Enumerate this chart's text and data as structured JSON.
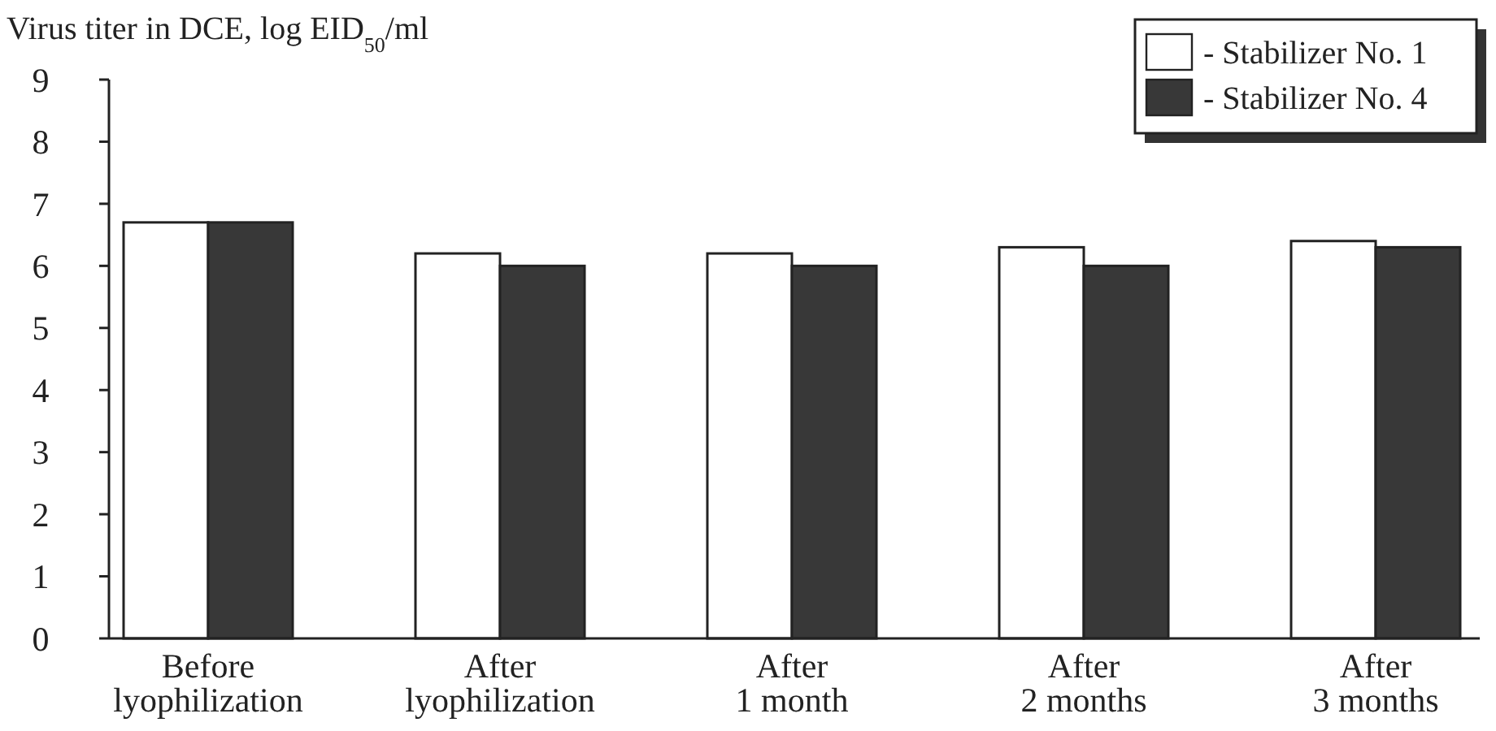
{
  "chart_data": {
    "type": "bar",
    "ylabel": "Virus titer in DCE, log EID$_{50}$/ml",
    "categories": [
      "Before lyophilization",
      "After lyophilization",
      "After 1 month",
      "After 2 months",
      "After 3 months"
    ],
    "series": [
      {
        "name": "- Stabilizer No. 1",
        "color": "#ffffff",
        "values": [
          6.7,
          6.2,
          6.2,
          6.3,
          6.4
        ]
      },
      {
        "name": "- Stabilizer No. 4",
        "color": "#383838",
        "values": [
          6.7,
          6.0,
          6.0,
          6.0,
          6.3
        ]
      }
    ],
    "ylim": [
      0,
      9
    ],
    "yticks": [
      0,
      1,
      2,
      3,
      4,
      5,
      6,
      7,
      8,
      9
    ],
    "grid": false,
    "legend": "top right"
  }
}
